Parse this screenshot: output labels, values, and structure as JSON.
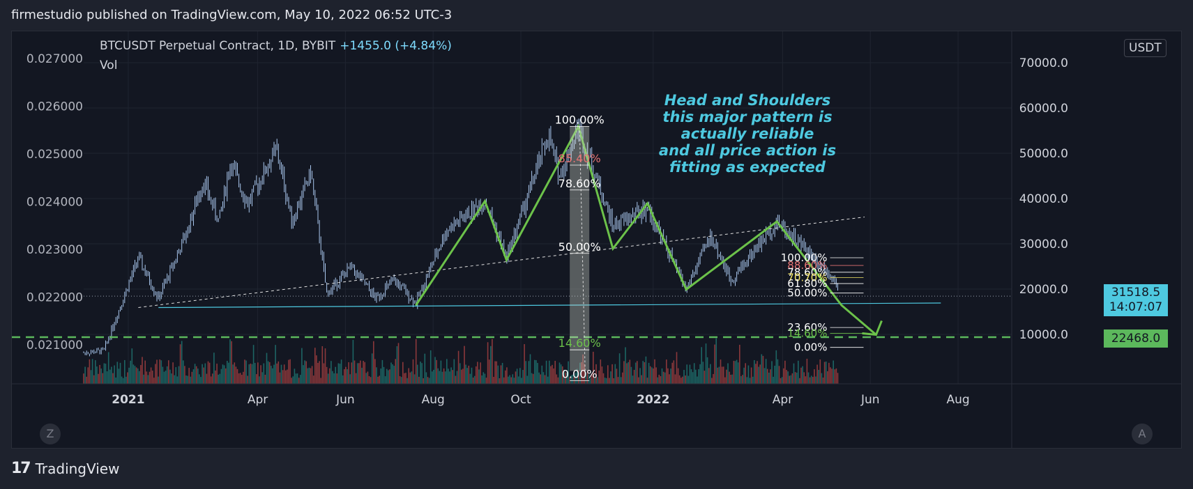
{
  "header": {
    "publish_line": "firmestudio published on TradingView.com, May 10, 2022 06:52 UTC-3"
  },
  "legend": {
    "symbol": "BTCUSDT Perpetual Contract, 1D, BYBIT",
    "change": "+1455.0 (+4.84%)",
    "vol_label": "Vol"
  },
  "unit_button": "USDT",
  "right_axis_partial": "8",
  "buttons": {
    "zoom": "Z",
    "auto": "A"
  },
  "footer": {
    "brand": "TradingView",
    "logo": "17"
  },
  "annotation": {
    "lines": [
      "Head and Shoulders",
      "this major pattern is",
      "actually reliable",
      "and all price action is",
      "fitting as expected"
    ]
  },
  "price_tags": {
    "last_price": "31518.5",
    "countdown": "14:07:07",
    "target": "22468.0"
  },
  "colors": {
    "background": "#131722",
    "grid": "#1f2430",
    "pattern": "#6cc24a",
    "candle": "#a9c7ee",
    "text": "#d1d4dc",
    "last_price": "#4ec9e0",
    "target": "#5cb85c",
    "fib_red": "#e57373",
    "fib_yellow": "#f5e663",
    "fib_green": "#6cc24a"
  },
  "fib_left": {
    "levels": [
      {
        "label": "100.00%",
        "color": "#ffffff"
      },
      {
        "label": "85.40%",
        "color": "#e57373"
      },
      {
        "label": "78.60%",
        "color": "#ffffff"
      },
      {
        "label": "50.00%",
        "color": "#ffffff"
      },
      {
        "label": "14.60%",
        "color": "#6cc24a"
      },
      {
        "label": "0.00%",
        "color": "#ffffff"
      }
    ]
  },
  "fib_right": {
    "levels": [
      {
        "label": "100.00%",
        "color": "#ffffff"
      },
      {
        "label": "88.60%",
        "color": "#e57373"
      },
      {
        "label": "78.60%",
        "color": "#ffffff"
      },
      {
        "label": "70.70%",
        "color": "#f5e663"
      },
      {
        "label": "61.80%",
        "color": "#ffffff"
      },
      {
        "label": "50.00%",
        "color": "#ffffff"
      },
      {
        "label": "23.60%",
        "color": "#ffffff"
      },
      {
        "label": "14.60%",
        "color": "#6cc24a"
      },
      {
        "label": "0.00%",
        "color": "#ffffff"
      }
    ]
  },
  "chart_data": {
    "type": "candlestick",
    "title": "BTCUSDT Perpetual Contract, 1D, BYBIT",
    "x_axis": {
      "tick_labels": [
        "2021",
        "Apr",
        "Jun",
        "Aug",
        "Oct",
        "2022",
        "Apr",
        "Jun",
        "Aug"
      ]
    },
    "y_axis_right": {
      "tick_labels": [
        "70000.0",
        "60000.0",
        "50000.0",
        "40000.0",
        "30000.0",
        "20000.0",
        "10000.0"
      ],
      "range": [
        5000,
        80000
      ]
    },
    "y_axis_left": {
      "tick_labels": [
        "0.027000",
        "0.026000",
        "0.025000",
        "0.024000",
        "0.023000",
        "0.022000",
        "0.021000"
      ]
    },
    "price_path": [
      {
        "date": "2020-12-01",
        "price": 19000
      },
      {
        "date": "2020-12-15",
        "price": 19500
      },
      {
        "date": "2021-01-08",
        "price": 40000
      },
      {
        "date": "2021-01-22",
        "price": 31000
      },
      {
        "date": "2021-02-10",
        "price": 45000
      },
      {
        "date": "2021-02-22",
        "price": 57000
      },
      {
        "date": "2021-03-05",
        "price": 48000
      },
      {
        "date": "2021-03-13",
        "price": 61000
      },
      {
        "date": "2021-03-25",
        "price": 52000
      },
      {
        "date": "2021-04-14",
        "price": 64000
      },
      {
        "date": "2021-04-25",
        "price": 48000
      },
      {
        "date": "2021-05-08",
        "price": 59000
      },
      {
        "date": "2021-05-19",
        "price": 32000
      },
      {
        "date": "2021-06-05",
        "price": 38000
      },
      {
        "date": "2021-06-22",
        "price": 31000
      },
      {
        "date": "2021-07-05",
        "price": 35000
      },
      {
        "date": "2021-07-20",
        "price": 30000
      },
      {
        "date": "2021-08-10",
        "price": 46000
      },
      {
        "date": "2021-09-06",
        "price": 52500
      },
      {
        "date": "2021-09-21",
        "price": 40000
      },
      {
        "date": "2021-10-20",
        "price": 67000
      },
      {
        "date": "2021-10-28",
        "price": 58000
      },
      {
        "date": "2021-11-10",
        "price": 69000
      },
      {
        "date": "2021-12-04",
        "price": 47000
      },
      {
        "date": "2021-12-28",
        "price": 51000
      },
      {
        "date": "2022-01-24",
        "price": 33000
      },
      {
        "date": "2022-02-10",
        "price": 45000
      },
      {
        "date": "2022-02-24",
        "price": 35000
      },
      {
        "date": "2022-03-28",
        "price": 48000
      },
      {
        "date": "2022-04-20",
        "price": 41000
      },
      {
        "date": "2022-05-06",
        "price": 36000
      },
      {
        "date": "2022-05-10",
        "price": 31518.5
      }
    ],
    "pattern_path": [
      {
        "date": "2021-07-20",
        "price": 29500
      },
      {
        "date": "2021-09-06",
        "price": 52500
      },
      {
        "date": "2021-09-21",
        "price": 39500
      },
      {
        "date": "2021-11-10",
        "price": 69000
      },
      {
        "date": "2021-12-04",
        "price": 42000
      },
      {
        "date": "2021-12-28",
        "price": 52000
      },
      {
        "date": "2022-01-24",
        "price": 33000
      },
      {
        "date": "2022-03-28",
        "price": 48000
      },
      {
        "date": "2022-05-12",
        "price": 29500
      },
      {
        "date": "2022-06-05",
        "price": 23000
      }
    ],
    "neckline": [
      {
        "date": "2021-01-08",
        "price": 29000
      },
      {
        "date": "2022-05-28",
        "price": 49000
      }
    ],
    "support_line": [
      {
        "date": "2021-01-22",
        "price": 29000
      },
      {
        "date": "2022-07-20",
        "price": 30000
      }
    ],
    "target_price": 22468.0,
    "last_price": 31518.5,
    "volume_note": "volume histogram bars along the bottom"
  }
}
